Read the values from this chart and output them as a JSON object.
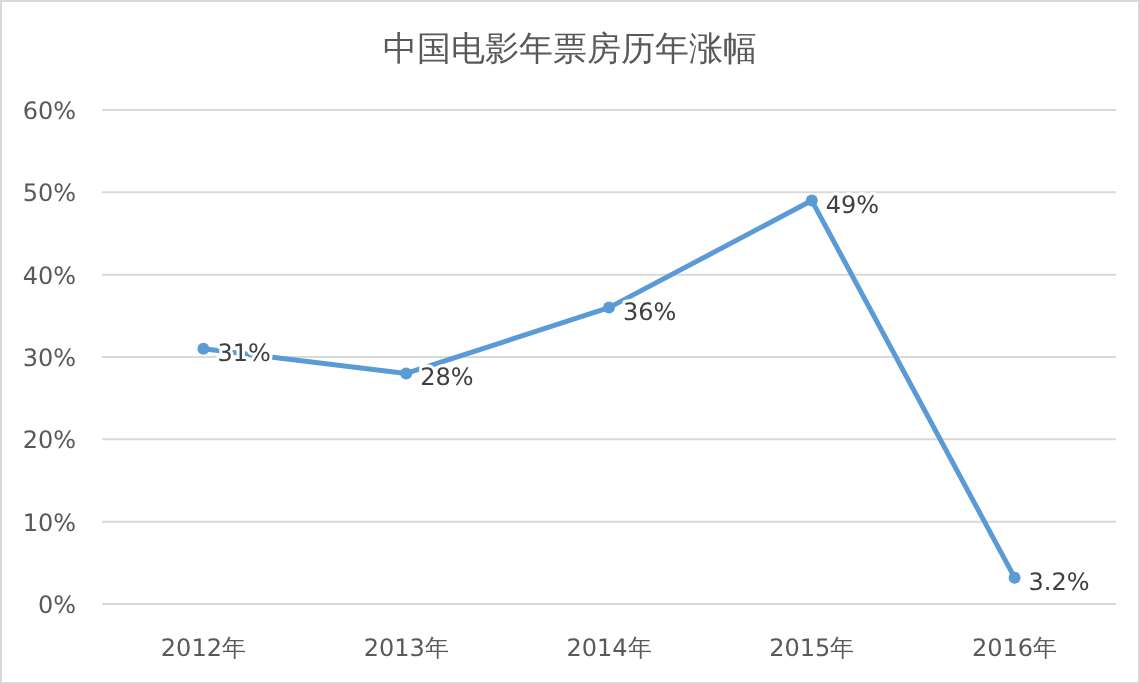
{
  "chart_data": {
    "type": "line",
    "title": "中国电影年票房历年涨幅",
    "categories": [
      "2012年",
      "2013年",
      "2014年",
      "2015年",
      "2016年"
    ],
    "series": [
      {
        "color": "#5b9bd5",
        "values": [
          31,
          28,
          36,
          49,
          3.2
        ],
        "value_labels": [
          "31%",
          "28%",
          "36%",
          "49%",
          "3.2%"
        ]
      }
    ],
    "ylim": [
      0,
      60
    ],
    "yticks": [
      {
        "value": 0,
        "label": "0%"
      },
      {
        "value": 10,
        "label": "10%"
      },
      {
        "value": 20,
        "label": "20%"
      },
      {
        "value": 30,
        "label": "30%"
      },
      {
        "value": 40,
        "label": "40%"
      },
      {
        "value": 50,
        "label": "50%"
      },
      {
        "value": 60,
        "label": "60%"
      }
    ],
    "grid": "y",
    "marker": "circle",
    "line_style": "solid"
  }
}
